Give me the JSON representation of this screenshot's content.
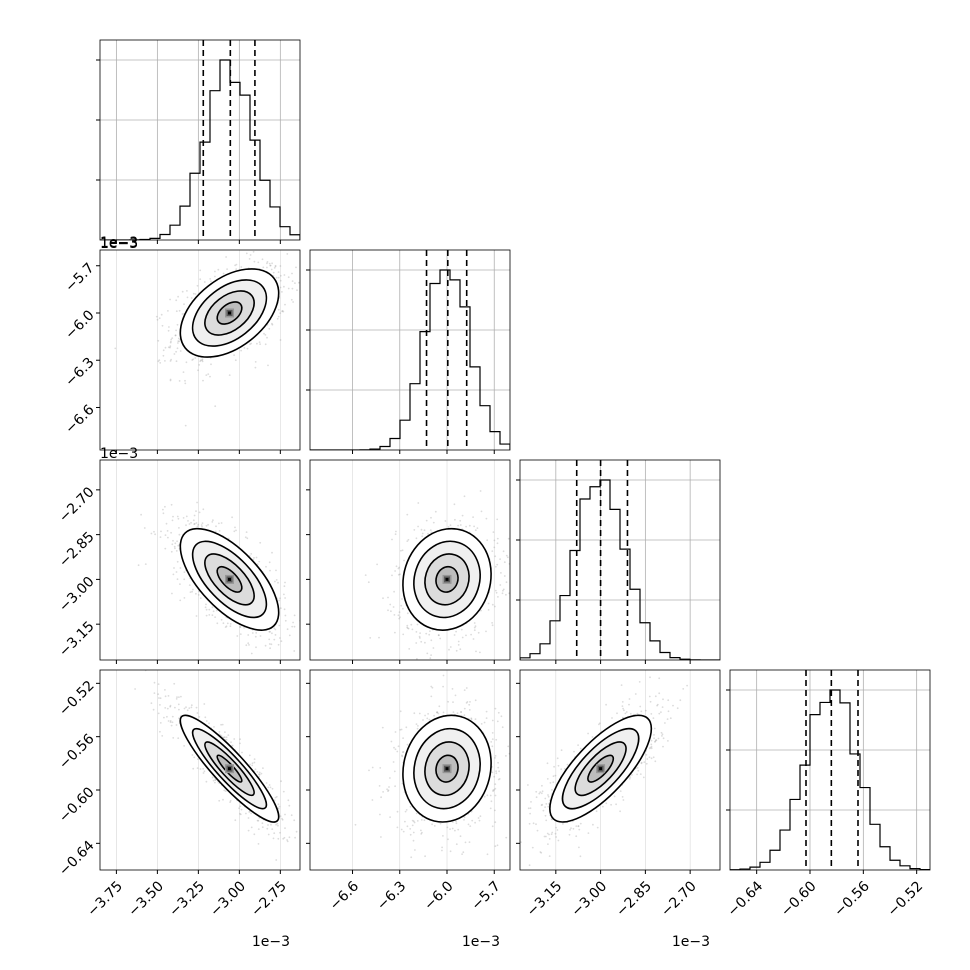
{
  "chart_data": {
    "type": "corner",
    "colors": {
      "line": "#000000",
      "grid": "#b0b0b0",
      "points": "#9a9a9a",
      "density": [
        "#ffffff",
        "#f0f0f0",
        "#dcdcdc",
        "#bdbdbd",
        "#969696",
        "#5a5a5a",
        "#000000"
      ]
    },
    "axis_offset_label": "1e−3",
    "variables": [
      {
        "id": "p1",
        "range": [
          -3.85,
          -2.63
        ],
        "ticks": [
          -3.75,
          -3.5,
          -3.25,
          -3.0,
          -2.75
        ],
        "tick_labels": [
          "−3.75",
          "−3.50",
          "−3.25",
          "−3.00",
          "−2.75"
        ],
        "offset_label": "1e−3",
        "quantiles": [
          -3.22,
          -3.055,
          -2.905
        ],
        "center": -3.06,
        "sd": 0.15,
        "hist_y_ticks_frac": [
          0.3,
          0.6,
          0.9
        ]
      },
      {
        "id": "p2",
        "range": [
          -6.87,
          -5.6
        ],
        "ticks": [
          -6.6,
          -6.3,
          -6.0,
          -5.7
        ],
        "tick_labels": [
          "−6.6",
          "−6.3",
          "−6.0",
          "−5.7"
        ],
        "offset_label": "1e−3",
        "quantiles": [
          -6.13,
          -5.995,
          -5.875
        ],
        "center": -6.0,
        "sd": 0.14,
        "hist_y_ticks_frac": [
          0.3,
          0.6,
          0.9
        ]
      },
      {
        "id": "p3",
        "range": [
          -3.27,
          -2.6
        ],
        "ticks": [
          -3.15,
          -3.0,
          -2.85,
          -2.7
        ],
        "tick_labels": [
          "−3.15",
          "−3.00",
          "−2.85",
          "−2.70"
        ],
        "offset_label": "1e−3",
        "quantiles": [
          -3.08,
          -3.0,
          -2.91
        ],
        "center": -3.0,
        "sd": 0.085,
        "hist_y_ticks_frac": [
          0.3,
          0.6,
          0.9
        ]
      },
      {
        "id": "p4",
        "range": [
          -0.66,
          -0.51
        ],
        "ticks": [
          -0.64,
          -0.6,
          -0.56,
          -0.52
        ],
        "tick_labels": [
          "−0.64",
          "−0.60",
          "−0.56",
          "−0.52"
        ],
        "offset_label": "",
        "quantiles": [
          -0.603,
          -0.584,
          -0.564
        ],
        "center": -0.584,
        "sd": 0.02,
        "hist_y_ticks_frac": [
          0.3,
          0.6,
          0.9
        ]
      }
    ],
    "correlations": [
      [
        1.0,
        0.45,
        -0.65,
        -0.9
      ],
      [
        0.45,
        1.0,
        0.1,
        0.1
      ],
      [
        -0.65,
        0.1,
        1.0,
        0.75
      ],
      [
        -0.9,
        0.1,
        0.75,
        1.0
      ]
    ],
    "contour_levels_sigma": [
      0.5,
      1.0,
      1.5,
      2.0
    ],
    "hist_bins": 20,
    "grid": true
  }
}
